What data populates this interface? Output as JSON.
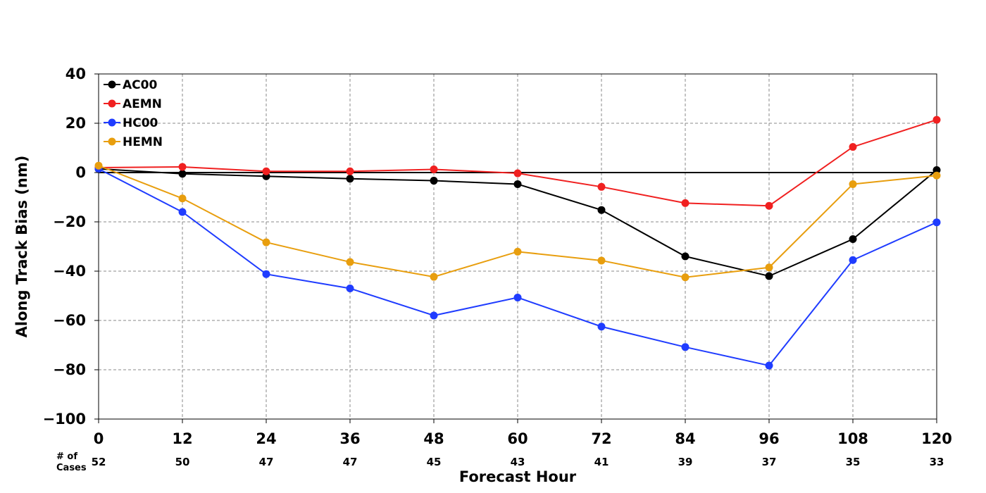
{
  "chart_data": {
    "type": "line",
    "title": "",
    "xlabel": "Forecast Hour",
    "ylabel": "Along Track Bias (nm)",
    "x": [
      0,
      12,
      24,
      36,
      48,
      60,
      72,
      84,
      96,
      108,
      120
    ],
    "xlim": [
      0,
      120
    ],
    "ylim": [
      -100,
      40
    ],
    "yticks": [
      40,
      20,
      0,
      -20,
      -40,
      -60,
      -80,
      -100
    ],
    "ytick_labels": [
      "40",
      "20",
      "0",
      "−20",
      "−40",
      "−60",
      "−80",
      "−100"
    ],
    "xtick_labels": [
      "0",
      "12",
      "24",
      "36",
      "48",
      "60",
      "72",
      "84",
      "96",
      "108",
      "120"
    ],
    "grid": true,
    "legend_position": "top-left",
    "zero_line": true,
    "cases_title": [
      "# of",
      "Cases"
    ],
    "cases": [
      "52",
      "50",
      "47",
      "47",
      "45",
      "43",
      "41",
      "39",
      "37",
      "35",
      "33"
    ],
    "series": [
      {
        "name": "AC00",
        "color": "#000000",
        "values": [
          1.5,
          -0.5,
          -1.5,
          -2.5,
          -3.3,
          -4.7,
          -15.2,
          -34.0,
          -42.0,
          -27.0,
          1.0
        ]
      },
      {
        "name": "AEMN",
        "color": "#f02020",
        "values": [
          2.0,
          2.3,
          0.5,
          0.5,
          1.3,
          -0.3,
          -5.8,
          -12.4,
          -13.5,
          10.4,
          21.4
        ]
      },
      {
        "name": "HC00",
        "color": "#1f3cff",
        "values": [
          1.5,
          -16.0,
          -41.2,
          -47.0,
          -58.0,
          -50.7,
          -62.5,
          -70.8,
          -78.3,
          -35.5,
          -20.2
        ]
      },
      {
        "name": "HEMN",
        "color": "#e89e0e",
        "values": [
          2.8,
          -10.5,
          -28.3,
          -36.3,
          -42.3,
          -32.1,
          -35.7,
          -42.5,
          -38.5,
          -4.7,
          -1.2
        ]
      }
    ]
  }
}
